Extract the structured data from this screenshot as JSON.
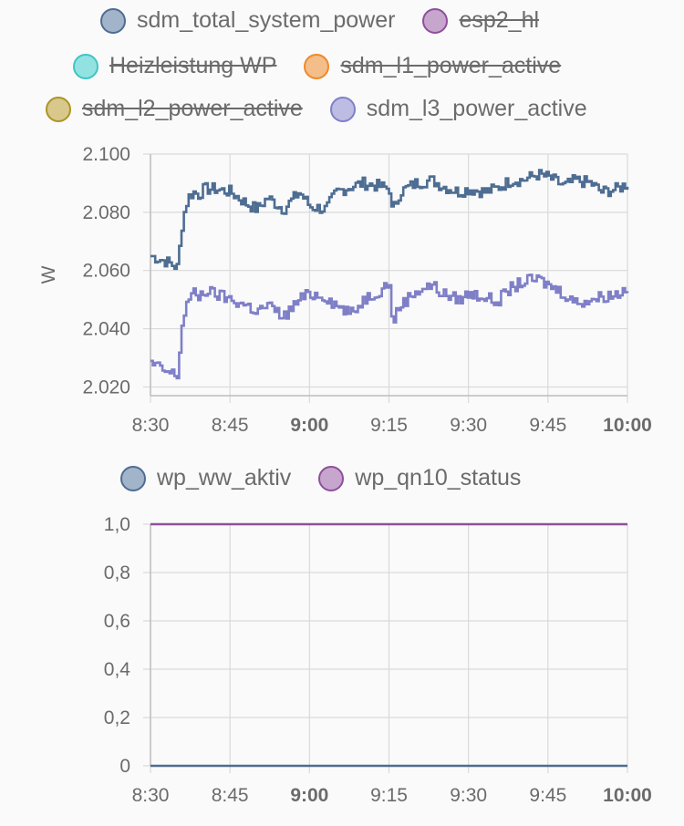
{
  "chart_data": [
    {
      "type": "line",
      "ylabel": "W",
      "ylim": [
        2.017,
        2.1
      ],
      "y_ticks": [
        "2.100",
        "2.080",
        "2.060",
        "2.040",
        "2.020"
      ],
      "y_tick_values": [
        2.1,
        2.08,
        2.06,
        2.04,
        2.02
      ],
      "x_ticks": [
        {
          "label": "8:30",
          "bold": false
        },
        {
          "label": "8:45",
          "bold": false
        },
        {
          "label": "9:00",
          "bold": true
        },
        {
          "label": "9:15",
          "bold": false
        },
        {
          "label": "9:30",
          "bold": false
        },
        {
          "label": "9:45",
          "bold": false
        },
        {
          "label": "10:00",
          "bold": true
        }
      ],
      "x_range": [
        "8:30",
        "10:00"
      ],
      "grid": true,
      "legend": [
        {
          "name": "sdm_total_system_power",
          "fill": "#a2b4ca",
          "stroke": "#4e6d92",
          "hidden": false
        },
        {
          "name": "esp2_hl",
          "fill": "#c7a6cd",
          "stroke": "#8e4f9b",
          "hidden": true
        },
        {
          "name": "Heizleistung WP",
          "fill": "#93e2e2",
          "stroke": "#3fc5c5",
          "hidden": true
        },
        {
          "name": "sdm_l1_power_active",
          "fill": "#f4be8a",
          "stroke": "#ec8a2b",
          "hidden": true
        },
        {
          "name": "sdm_l2_power_active",
          "fill": "#d8c88c",
          "stroke": "#ab9523",
          "hidden": true
        },
        {
          "name": "sdm_l3_power_active",
          "fill": "#bdbde4",
          "stroke": "#7f7fc8",
          "hidden": false
        }
      ],
      "series": [
        {
          "name": "sdm_total_system_power",
          "color": "#4e6d92",
          "x_minutes": [
            0,
            3,
            5,
            6,
            7,
            8,
            9,
            10,
            12,
            15,
            18,
            20,
            22,
            25,
            28,
            30,
            33,
            35,
            38,
            40,
            43,
            45,
            45.5,
            47,
            50,
            53,
            55,
            58,
            60,
            63,
            65,
            68,
            70,
            73,
            75,
            78,
            80,
            83,
            85,
            88,
            90
          ],
          "values": [
            2.065,
            2.063,
            2.061,
            2.078,
            2.085,
            2.087,
            2.086,
            2.088,
            2.088,
            2.087,
            2.083,
            2.081,
            2.085,
            2.081,
            2.087,
            2.082,
            2.081,
            2.087,
            2.089,
            2.09,
            2.089,
            2.088,
            2.08,
            2.087,
            2.09,
            2.091,
            2.089,
            2.087,
            2.088,
            2.087,
            2.088,
            2.091,
            2.091,
            2.093,
            2.092,
            2.089,
            2.091,
            2.09,
            2.087,
            2.088,
            2.09
          ]
        },
        {
          "name": "sdm_l3_power_active",
          "color": "#7f7fc8",
          "x_minutes": [
            0,
            3,
            5,
            6,
            7,
            8,
            9,
            10,
            12,
            15,
            18,
            20,
            22,
            25,
            28,
            30,
            33,
            35,
            38,
            40,
            43,
            45,
            45.5,
            47,
            50,
            53,
            55,
            58,
            60,
            63,
            65,
            68,
            70,
            73,
            75,
            78,
            80,
            83,
            85,
            88,
            90
          ],
          "values": [
            2.028,
            2.025,
            2.024,
            2.044,
            2.05,
            2.052,
            2.051,
            2.053,
            2.052,
            2.05,
            2.048,
            2.046,
            2.048,
            2.044,
            2.05,
            2.052,
            2.051,
            2.048,
            2.045,
            2.05,
            2.053,
            2.056,
            2.042,
            2.048,
            2.053,
            2.055,
            2.052,
            2.05,
            2.052,
            2.051,
            2.049,
            2.054,
            2.056,
            2.057,
            2.055,
            2.052,
            2.049,
            2.05,
            2.051,
            2.052,
            2.054
          ]
        }
      ]
    },
    {
      "type": "line",
      "ylim": [
        0,
        1
      ],
      "y_ticks": [
        "1,0",
        "0,8",
        "0,6",
        "0,4",
        "0,2",
        "0"
      ],
      "y_tick_values": [
        1,
        0.8,
        0.6,
        0.4,
        0.2,
        0
      ],
      "x_ticks": [
        {
          "label": "8:30",
          "bold": false
        },
        {
          "label": "8:45",
          "bold": false
        },
        {
          "label": "9:00",
          "bold": true
        },
        {
          "label": "9:15",
          "bold": false
        },
        {
          "label": "9:30",
          "bold": false
        },
        {
          "label": "9:45",
          "bold": false
        },
        {
          "label": "10:00",
          "bold": true
        }
      ],
      "x_range": [
        "8:30",
        "10:00"
      ],
      "grid": true,
      "legend": [
        {
          "name": "wp_ww_aktiv",
          "fill": "#a2b4ca",
          "stroke": "#4e6d92",
          "hidden": false
        },
        {
          "name": "wp_qn10_status",
          "fill": "#c7a6cd",
          "stroke": "#8e4f9b",
          "hidden": false
        }
      ],
      "series": [
        {
          "name": "wp_ww_aktiv",
          "color": "#4e6d92",
          "x_minutes": [
            0,
            90
          ],
          "values": [
            0,
            0
          ]
        },
        {
          "name": "wp_qn10_status",
          "color": "#8e4f9b",
          "x_minutes": [
            0,
            90
          ],
          "values": [
            1,
            1
          ]
        }
      ]
    }
  ]
}
